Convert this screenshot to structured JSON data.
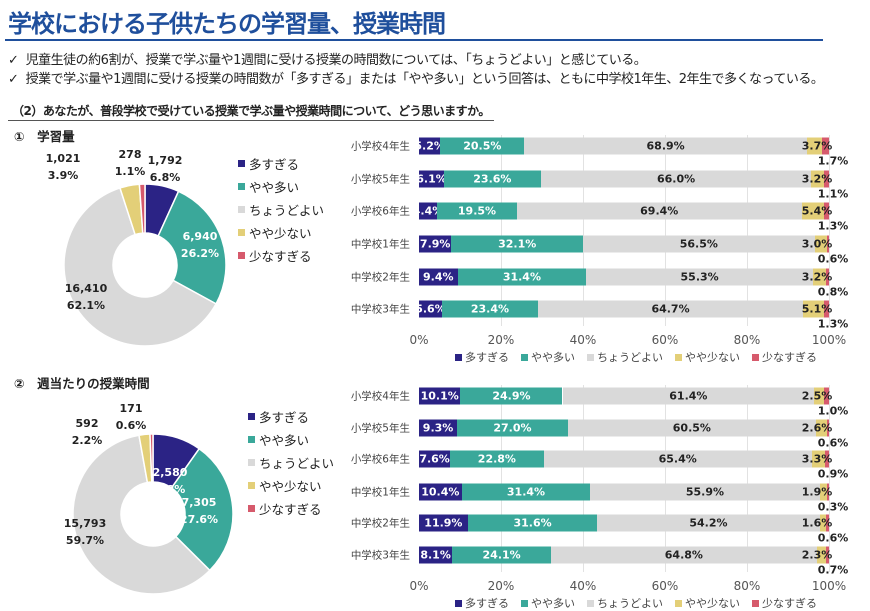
{
  "header": {
    "title": "学校における子供たちの学習量、授業時間",
    "check_icon": "✓",
    "bullets": [
      "児童生徒の約6割が、授業で学ぶ量や1週間に受ける授業の時間数については、「ちょうどよい」と感じている。",
      "授業で学ぶ量や1週間に受ける授業の時間数が「多すぎる」または「やや多い」という回答は、ともに中学校1年生、2年生で多くなっている。"
    ]
  },
  "section_title": "（2）あなたが、普段学校で受けている授業で学ぶ量や授業時間について、どう思いますか。",
  "colors": {
    "多すぎる": "#2b2385",
    "やや多い": "#3aa89a",
    "ちょうどよい": "#d9d9d9",
    "やや少ない": "#e3cf78",
    "少なすぎる": "#d65a6c",
    "title": "#1f4f9c"
  },
  "chart_data": [
    {
      "type": "pie",
      "subtitle": "①　学習量",
      "categories": [
        "多すぎる",
        "やや多い",
        "ちょうどよい",
        "やや少ない",
        "少なすぎる"
      ],
      "counts": [
        "1,792",
        "6,940",
        "16,410",
        "1,021",
        "278"
      ],
      "values": [
        6.8,
        26.2,
        62.1,
        3.9,
        1.1
      ],
      "percent_labels": [
        "6.8%",
        "26.2%",
        "62.1%",
        "3.9%",
        "1.1%"
      ],
      "legend": "right",
      "style": "donut"
    },
    {
      "type": "bar",
      "orientation": "horizontal",
      "stacked": true,
      "categories": [
        "小学校4年生",
        "小学校5年生",
        "小学校6年生",
        "中学校1年生",
        "中学校2年生",
        "中学校3年生"
      ],
      "series": [
        {
          "name": "多すぎる",
          "values": [
            5.2,
            6.1,
            4.4,
            7.9,
            9.4,
            5.6
          ]
        },
        {
          "name": "やや多い",
          "values": [
            20.5,
            23.6,
            19.5,
            32.1,
            31.4,
            23.4
          ]
        },
        {
          "name": "ちょうどよい",
          "values": [
            68.9,
            66.0,
            69.4,
            56.5,
            55.3,
            64.7
          ]
        },
        {
          "name": "やや少ない",
          "values": [
            3.7,
            3.2,
            5.4,
            3.0,
            3.2,
            5.1
          ]
        },
        {
          "name": "少なすぎる",
          "values": [
            1.7,
            1.1,
            1.3,
            0.6,
            0.8,
            1.3
          ]
        }
      ],
      "xlim": [
        0,
        100
      ],
      "ticks": [
        "0%",
        "20%",
        "40%",
        "60%",
        "80%",
        "100%"
      ],
      "grid": true,
      "legend": "bottom"
    },
    {
      "type": "pie",
      "subtitle": "②　週当たりの授業時間",
      "categories": [
        "多すぎる",
        "やや多い",
        "ちょうどよい",
        "やや少ない",
        "少なすぎる"
      ],
      "counts": [
        "2,580",
        "7,305",
        "15,793",
        "592",
        "171"
      ],
      "values": [
        9.8,
        27.6,
        59.7,
        2.2,
        0.6
      ],
      "percent_labels": [
        "9.8%",
        "27.6%",
        "59.7%",
        "2.2%",
        "0.6%"
      ],
      "legend": "right",
      "style": "donut"
    },
    {
      "type": "bar",
      "orientation": "horizontal",
      "stacked": true,
      "categories": [
        "小学校4年生",
        "小学校5年生",
        "小学校6年生",
        "中学校1年生",
        "中学校2年生",
        "中学校3年生"
      ],
      "series": [
        {
          "name": "多すぎる",
          "values": [
            10.1,
            9.3,
            7.6,
            10.4,
            11.9,
            8.1
          ]
        },
        {
          "name": "やや多い",
          "values": [
            24.9,
            27.0,
            22.8,
            31.4,
            31.6,
            24.1
          ]
        },
        {
          "name": "ちょうどよい",
          "values": [
            61.4,
            60.5,
            65.4,
            55.9,
            54.2,
            64.8
          ]
        },
        {
          "name": "やや少ない",
          "values": [
            2.5,
            2.6,
            3.3,
            1.9,
            1.6,
            2.3
          ]
        },
        {
          "name": "少なすぎる",
          "values": [
            1.0,
            0.6,
            0.9,
            0.3,
            0.6,
            0.7
          ]
        }
      ],
      "xlim": [
        0,
        100
      ],
      "ticks": [
        "0%",
        "20%",
        "40%",
        "60%",
        "80%",
        "100%"
      ],
      "grid": true,
      "legend": "bottom"
    }
  ]
}
